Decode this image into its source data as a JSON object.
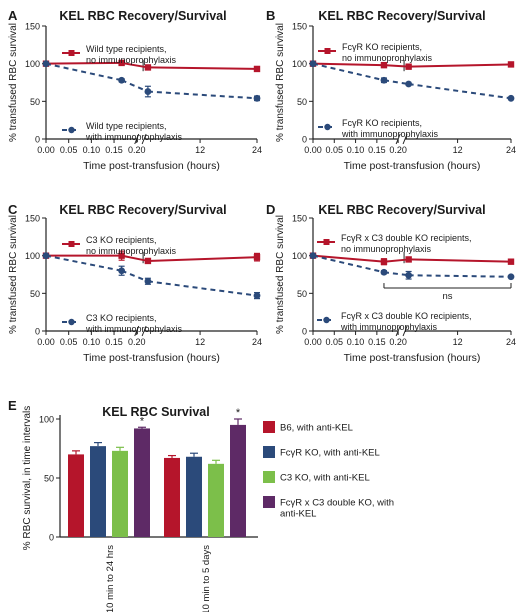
{
  "figure": {
    "panel_letters": [
      "A",
      "B",
      "C",
      "D",
      "E"
    ],
    "x_tick_labels": [
      "0.00",
      "0.05",
      "0.10",
      "0.15",
      "0.20",
      "12",
      "24"
    ],
    "y_tick_labels": [
      "0",
      "50",
      "100",
      "150"
    ],
    "y_axis_label": "% transfused RBC survival",
    "x_axis_label": "Time post-transfusion (hours)",
    "panel_title": "KEL RBC Recovery/Survival",
    "ns_label": "ns",
    "colors": {
      "red": "#b5152b",
      "blue": "#2b4a7a",
      "green": "#7cbf4a",
      "purple": "#5e2a66",
      "axis": "#222222"
    }
  },
  "chart_data": [
    {
      "panel": "A",
      "type": "line",
      "title": "KEL RBC Recovery/Survival",
      "xlabel": "Time post-transfusion (hours)",
      "ylabel": "% transfused RBC survival",
      "ylim": [
        0,
        150
      ],
      "x_axis": "broken: 0.00–0.20 then 0.20–24",
      "x_ticks": [
        "0.00",
        "0.05",
        "0.10",
        "0.15",
        "0.20",
        "12",
        "24"
      ],
      "legend_position": "inside, upper-left and lower-left",
      "series": [
        {
          "name": "Wild type recipients, no immunoprophylaxis",
          "style": "solid",
          "marker": "square",
          "color": "red",
          "x": [
            0,
            0.1667,
            1,
            24
          ],
          "y": [
            100,
            101,
            95,
            93
          ],
          "err": [
            0,
            2,
            2,
            1
          ]
        },
        {
          "name": "Wild type recipients, with immunoprophylaxis",
          "style": "dashed",
          "marker": "circle",
          "color": "blue",
          "x": [
            0,
            0.1667,
            1,
            24
          ],
          "y": [
            100,
            78,
            63,
            54
          ],
          "err": [
            0,
            2,
            7,
            3
          ]
        }
      ]
    },
    {
      "panel": "B",
      "type": "line",
      "title": "KEL RBC Recovery/Survival",
      "xlabel": "Time post-transfusion (hours)",
      "ylabel": "% transfused RBC survival",
      "ylim": [
        0,
        150
      ],
      "x_ticks": [
        "0.00",
        "0.05",
        "0.10",
        "0.15",
        "0.20",
        "12",
        "24"
      ],
      "series": [
        {
          "name": "FcγR KO recipients, no immunoprophylaxis",
          "style": "solid",
          "marker": "square",
          "color": "red",
          "x": [
            0,
            0.1667,
            1,
            24
          ],
          "y": [
            100,
            98,
            96,
            99
          ],
          "err": [
            0,
            2,
            1,
            2
          ]
        },
        {
          "name": "FcγR KO recipients, with immunoprophylaxis",
          "style": "dashed",
          "marker": "circle",
          "color": "blue",
          "x": [
            0,
            0.1667,
            1,
            24
          ],
          "y": [
            100,
            78,
            73,
            54
          ],
          "err": [
            0,
            3,
            1,
            1
          ]
        }
      ]
    },
    {
      "panel": "C",
      "type": "line",
      "title": "KEL RBC Recovery/Survival",
      "xlabel": "Time post-transfusion (hours)",
      "ylabel": "% transfused RBC survival",
      "ylim": [
        0,
        150
      ],
      "x_ticks": [
        "0.00",
        "0.05",
        "0.10",
        "0.15",
        "0.20",
        "12",
        "24"
      ],
      "series": [
        {
          "name": "C3 KO recipients, no immunoprophylaxis",
          "style": "solid",
          "marker": "square",
          "color": "red",
          "x": [
            0,
            0.1667,
            1,
            24
          ],
          "y": [
            100,
            100,
            93,
            98
          ],
          "err": [
            0,
            6,
            2,
            5
          ]
        },
        {
          "name": "C3 KO recipients, with immunoprophylaxis",
          "style": "dashed",
          "marker": "circle",
          "color": "blue",
          "x": [
            0,
            0.1667,
            1,
            24
          ],
          "y": [
            100,
            80,
            66,
            47
          ],
          "err": [
            0,
            6,
            4,
            4
          ]
        }
      ]
    },
    {
      "panel": "D",
      "type": "line",
      "title": "KEL RBC Recovery/Survival",
      "xlabel": "Time post-transfusion (hours)",
      "ylabel": "% transfused RBC survival",
      "ylim": [
        0,
        150
      ],
      "x_ticks": [
        "0.00",
        "0.05",
        "0.10",
        "0.15",
        "0.20",
        "12",
        "24"
      ],
      "annotation": "ns",
      "series": [
        {
          "name": "FcγR x C3 double KO recipients, no immunoprophylaxis",
          "style": "solid",
          "marker": "square",
          "color": "red",
          "x": [
            0,
            0.1667,
            1,
            24
          ],
          "y": [
            100,
            92,
            95,
            92
          ],
          "err": [
            0,
            4,
            3,
            1
          ]
        },
        {
          "name": "FcγR x C3 double KO recipients, with immunoprophylaxis",
          "style": "dashed",
          "marker": "circle",
          "color": "blue",
          "x": [
            0,
            0.1667,
            1,
            24
          ],
          "y": [
            100,
            78,
            74,
            72
          ],
          "err": [
            0,
            2,
            5,
            1
          ]
        }
      ]
    },
    {
      "panel": "E",
      "type": "bar",
      "title": "KEL RBC Survival",
      "ylabel": "% RBC survival, in time intervals",
      "ylim": [
        0,
        100
      ],
      "y_ticks": [
        "0",
        "50",
        "100"
      ],
      "categories": [
        "10 min to 24 hrs",
        "10 min to 5 days"
      ],
      "significance": [
        "*",
        "*"
      ],
      "series": [
        {
          "name": "B6, with anti-KEL",
          "color": "red",
          "values": [
            70,
            67
          ],
          "err": [
            3,
            2
          ]
        },
        {
          "name": "FcγR KO, with anti-KEL",
          "color": "blue",
          "values": [
            77,
            68
          ],
          "err": [
            3,
            3
          ]
        },
        {
          "name": "C3 KO, with anti-KEL",
          "color": "green",
          "values": [
            73,
            62
          ],
          "err": [
            3,
            3
          ]
        },
        {
          "name": "FcγR x C3 double KO, with anti-KEL",
          "color": "purple",
          "values": [
            92,
            95
          ],
          "err": [
            1,
            5
          ]
        }
      ]
    }
  ]
}
